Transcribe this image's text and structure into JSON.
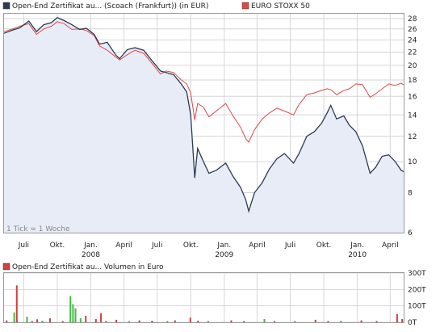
{
  "legend": {
    "main": [
      {
        "label": "Open-End Zertifikat au... (Scoach (Frankfurt)) (in EUR)",
        "color": "#2e3a52"
      },
      {
        "label": "EURO STOXX 50",
        "color": "#e04848"
      }
    ],
    "volume": {
      "label": "Open-End Zertifikat au... Volumen in Euro",
      "color": "#d04040"
    }
  },
  "annotation": "1 Tick = 1 Woche",
  "colors": {
    "series_main": "#2e3a52",
    "series_index": "#e04848",
    "fill_main": "#e8ecf7",
    "vol_red": "#d04040",
    "vol_green": "#44bb44"
  },
  "chart_data": [
    {
      "type": "line",
      "scale": "log",
      "ylim": [
        6,
        29
      ],
      "yticks": [
        6,
        8,
        10,
        12,
        14,
        16,
        18,
        20,
        22,
        24,
        26,
        28
      ],
      "xlim": [
        "2007-05-08",
        "2010-05-08"
      ],
      "x_ticks": [
        {
          "label": "Juli",
          "date": "2007-07-01"
        },
        {
          "label": "Okt.",
          "date": "2007-10-01"
        },
        {
          "label": "Jan.",
          "date": "2008-01-01",
          "year": "2008"
        },
        {
          "label": "April",
          "date": "2008-04-01"
        },
        {
          "label": "Juli",
          "date": "2008-07-01"
        },
        {
          "label": "Okt.",
          "date": "2008-10-01"
        },
        {
          "label": "Jan.",
          "date": "2009-01-01",
          "year": "2009"
        },
        {
          "label": "April",
          "date": "2009-04-01"
        },
        {
          "label": "Juli",
          "date": "2009-07-01"
        },
        {
          "label": "Okt.",
          "date": "2009-10-01"
        },
        {
          "label": "Jan.",
          "date": "2010-01-01",
          "year": "2010"
        },
        {
          "label": "April",
          "date": "2010-04-01"
        }
      ],
      "grid": true,
      "series": [
        {
          "name": "Open-End Zertifikat au... (Scoach (Frankfurt)) (in EUR)",
          "points": [
            [
              "2007-05-08",
              25.2
            ],
            [
              "2007-06-01",
              25.8
            ],
            [
              "2007-06-20",
              26.2
            ],
            [
              "2007-07-15",
              27.5
            ],
            [
              "2007-08-05",
              25.5
            ],
            [
              "2007-08-25",
              26.8
            ],
            [
              "2007-09-15",
              27.2
            ],
            [
              "2007-10-01",
              28.2
            ],
            [
              "2007-10-20",
              27.6
            ],
            [
              "2007-11-10",
              26.8
            ],
            [
              "2007-12-01",
              25.9
            ],
            [
              "2007-12-20",
              26.1
            ],
            [
              "2008-01-10",
              25.0
            ],
            [
              "2008-01-25",
              23.3
            ],
            [
              "2008-02-15",
              23.6
            ],
            [
              "2008-03-10",
              21.5
            ],
            [
              "2008-03-20",
              21.0
            ],
            [
              "2008-04-10",
              22.4
            ],
            [
              "2008-05-01",
              22.7
            ],
            [
              "2008-05-25",
              22.3
            ],
            [
              "2008-06-15",
              20.8
            ],
            [
              "2008-07-10",
              19.2
            ],
            [
              "2008-07-25",
              19.0
            ],
            [
              "2008-08-15",
              18.7
            ],
            [
              "2008-09-05",
              17.5
            ],
            [
              "2008-09-20",
              16.5
            ],
            [
              "2008-10-01",
              14.0
            ],
            [
              "2008-10-08",
              10.5
            ],
            [
              "2008-10-12",
              8.9
            ],
            [
              "2008-10-20",
              11.0
            ],
            [
              "2008-11-05",
              10.0
            ],
            [
              "2008-11-20",
              9.2
            ],
            [
              "2008-12-10",
              9.4
            ],
            [
              "2009-01-05",
              9.9
            ],
            [
              "2009-01-25",
              9.0
            ],
            [
              "2009-02-15",
              8.3
            ],
            [
              "2009-03-01",
              7.6
            ],
            [
              "2009-03-09",
              7.0
            ],
            [
              "2009-03-25",
              8.0
            ],
            [
              "2009-04-15",
              8.6
            ],
            [
              "2009-05-05",
              9.5
            ],
            [
              "2009-05-25",
              10.2
            ],
            [
              "2009-06-15",
              10.6
            ],
            [
              "2009-07-10",
              9.9
            ],
            [
              "2009-07-25",
              10.6
            ],
            [
              "2009-08-15",
              12.0
            ],
            [
              "2009-09-05",
              12.4
            ],
            [
              "2009-09-25",
              13.2
            ],
            [
              "2009-10-10",
              14.2
            ],
            [
              "2009-10-20",
              15.0
            ],
            [
              "2009-11-05",
              13.6
            ],
            [
              "2009-11-25",
              13.9
            ],
            [
              "2009-12-10",
              13.0
            ],
            [
              "2009-12-28",
              12.4
            ],
            [
              "2010-01-15",
              11.2
            ],
            [
              "2010-02-05",
              9.2
            ],
            [
              "2010-02-20",
              9.6
            ],
            [
              "2010-03-10",
              10.4
            ],
            [
              "2010-03-28",
              10.5
            ],
            [
              "2010-04-15",
              10.0
            ],
            [
              "2010-05-01",
              9.4
            ],
            [
              "2010-05-08",
              9.3
            ]
          ]
        },
        {
          "name": "EURO STOXX 50",
          "points": [
            [
              "2007-05-08",
              25.5
            ],
            [
              "2007-06-01",
              26.0
            ],
            [
              "2007-06-20",
              26.5
            ],
            [
              "2007-07-15",
              27.0
            ],
            [
              "2007-08-05",
              25.0
            ],
            [
              "2007-08-25",
              26.0
            ],
            [
              "2007-09-15",
              26.5
            ],
            [
              "2007-10-01",
              27.4
            ],
            [
              "2007-10-20",
              27.0
            ],
            [
              "2007-11-10",
              25.9
            ],
            [
              "2007-12-01",
              26.0
            ],
            [
              "2007-12-20",
              25.7
            ],
            [
              "2008-01-10",
              24.8
            ],
            [
              "2008-01-25",
              23.0
            ],
            [
              "2008-02-15",
              22.3
            ],
            [
              "2008-03-10",
              21.2
            ],
            [
              "2008-03-20",
              20.8
            ],
            [
              "2008-04-10",
              21.6
            ],
            [
              "2008-05-01",
              22.3
            ],
            [
              "2008-05-25",
              21.8
            ],
            [
              "2008-06-15",
              20.4
            ],
            [
              "2008-07-10",
              18.8
            ],
            [
              "2008-07-25",
              19.2
            ],
            [
              "2008-08-15",
              19.0
            ],
            [
              "2008-09-05",
              18.0
            ],
            [
              "2008-09-20",
              17.5
            ],
            [
              "2008-10-01",
              16.4
            ],
            [
              "2008-10-08",
              14.5
            ],
            [
              "2008-10-12",
              13.5
            ],
            [
              "2008-10-20",
              15.2
            ],
            [
              "2008-11-05",
              14.8
            ],
            [
              "2008-11-20",
              13.8
            ],
            [
              "2008-12-10",
              14.4
            ],
            [
              "2009-01-05",
              15.2
            ],
            [
              "2009-01-25",
              13.9
            ],
            [
              "2009-02-15",
              12.8
            ],
            [
              "2009-03-01",
              11.8
            ],
            [
              "2009-03-09",
              11.5
            ],
            [
              "2009-03-25",
              12.6
            ],
            [
              "2009-04-15",
              13.6
            ],
            [
              "2009-05-05",
              14.2
            ],
            [
              "2009-05-25",
              14.7
            ],
            [
              "2009-06-15",
              14.4
            ],
            [
              "2009-07-10",
              14.0
            ],
            [
              "2009-07-25",
              15.1
            ],
            [
              "2009-08-15",
              16.2
            ],
            [
              "2009-09-05",
              16.4
            ],
            [
              "2009-09-25",
              16.7
            ],
            [
              "2009-10-10",
              16.9
            ],
            [
              "2009-10-20",
              16.8
            ],
            [
              "2009-11-05",
              16.2
            ],
            [
              "2009-11-25",
              16.7
            ],
            [
              "2009-12-10",
              16.9
            ],
            [
              "2009-12-28",
              17.5
            ],
            [
              "2010-01-15",
              17.4
            ],
            [
              "2010-02-05",
              15.9
            ],
            [
              "2010-02-20",
              16.3
            ],
            [
              "2010-03-10",
              16.9
            ],
            [
              "2010-03-28",
              17.5
            ],
            [
              "2010-04-15",
              17.3
            ],
            [
              "2010-05-01",
              17.6
            ],
            [
              "2010-05-08",
              17.4
            ]
          ]
        }
      ]
    },
    {
      "type": "bar",
      "ylim": [
        0,
        300
      ],
      "yticks": [
        0,
        100,
        200,
        300
      ],
      "ytick_labels": [
        "0T",
        "100T",
        "200T",
        "300T"
      ],
      "bars": [
        {
          "date": "2007-05-15",
          "value": 12,
          "color": "red"
        },
        {
          "date": "2007-06-05",
          "value": 60,
          "color": "green"
        },
        {
          "date": "2007-06-12",
          "value": 225,
          "color": "red"
        },
        {
          "date": "2007-07-10",
          "value": 35,
          "color": "green"
        },
        {
          "date": "2007-07-24",
          "value": 8,
          "color": "red"
        },
        {
          "date": "2007-08-07",
          "value": 18,
          "color": "red"
        },
        {
          "date": "2007-08-21",
          "value": 10,
          "color": "green"
        },
        {
          "date": "2007-09-11",
          "value": 25,
          "color": "red"
        },
        {
          "date": "2007-10-16",
          "value": 8,
          "color": "red"
        },
        {
          "date": "2007-11-06",
          "value": 160,
          "color": "green"
        },
        {
          "date": "2007-11-13",
          "value": 110,
          "color": "green"
        },
        {
          "date": "2007-11-20",
          "value": 85,
          "color": "green"
        },
        {
          "date": "2007-12-04",
          "value": 25,
          "color": "green"
        },
        {
          "date": "2007-12-18",
          "value": 40,
          "color": "red"
        },
        {
          "date": "2008-01-15",
          "value": 20,
          "color": "red"
        },
        {
          "date": "2008-01-29",
          "value": 55,
          "color": "red"
        },
        {
          "date": "2008-02-12",
          "value": 10,
          "color": "green"
        },
        {
          "date": "2008-03-11",
          "value": 15,
          "color": "red"
        },
        {
          "date": "2008-04-15",
          "value": 8,
          "color": "green"
        },
        {
          "date": "2008-05-13",
          "value": 12,
          "color": "red"
        },
        {
          "date": "2008-06-17",
          "value": 10,
          "color": "red"
        },
        {
          "date": "2008-07-29",
          "value": 8,
          "color": "green"
        },
        {
          "date": "2008-08-19",
          "value": 12,
          "color": "red"
        },
        {
          "date": "2008-09-30",
          "value": 28,
          "color": "red"
        },
        {
          "date": "2008-10-21",
          "value": 10,
          "color": "red"
        },
        {
          "date": "2008-11-18",
          "value": 8,
          "color": "green"
        },
        {
          "date": "2009-01-20",
          "value": 12,
          "color": "red"
        },
        {
          "date": "2009-02-24",
          "value": 8,
          "color": "red"
        },
        {
          "date": "2009-04-21",
          "value": 20,
          "color": "green"
        },
        {
          "date": "2009-05-19",
          "value": 8,
          "color": "red"
        },
        {
          "date": "2009-07-14",
          "value": 8,
          "color": "green"
        },
        {
          "date": "2009-09-08",
          "value": 15,
          "color": "red"
        },
        {
          "date": "2009-10-13",
          "value": 8,
          "color": "red"
        },
        {
          "date": "2009-11-17",
          "value": 10,
          "color": "green"
        },
        {
          "date": "2010-01-12",
          "value": 12,
          "color": "red"
        },
        {
          "date": "2010-02-23",
          "value": 8,
          "color": "red"
        },
        {
          "date": "2010-04-20",
          "value": 50,
          "color": "red"
        },
        {
          "date": "2010-05-04",
          "value": 20,
          "color": "red"
        }
      ]
    }
  ]
}
